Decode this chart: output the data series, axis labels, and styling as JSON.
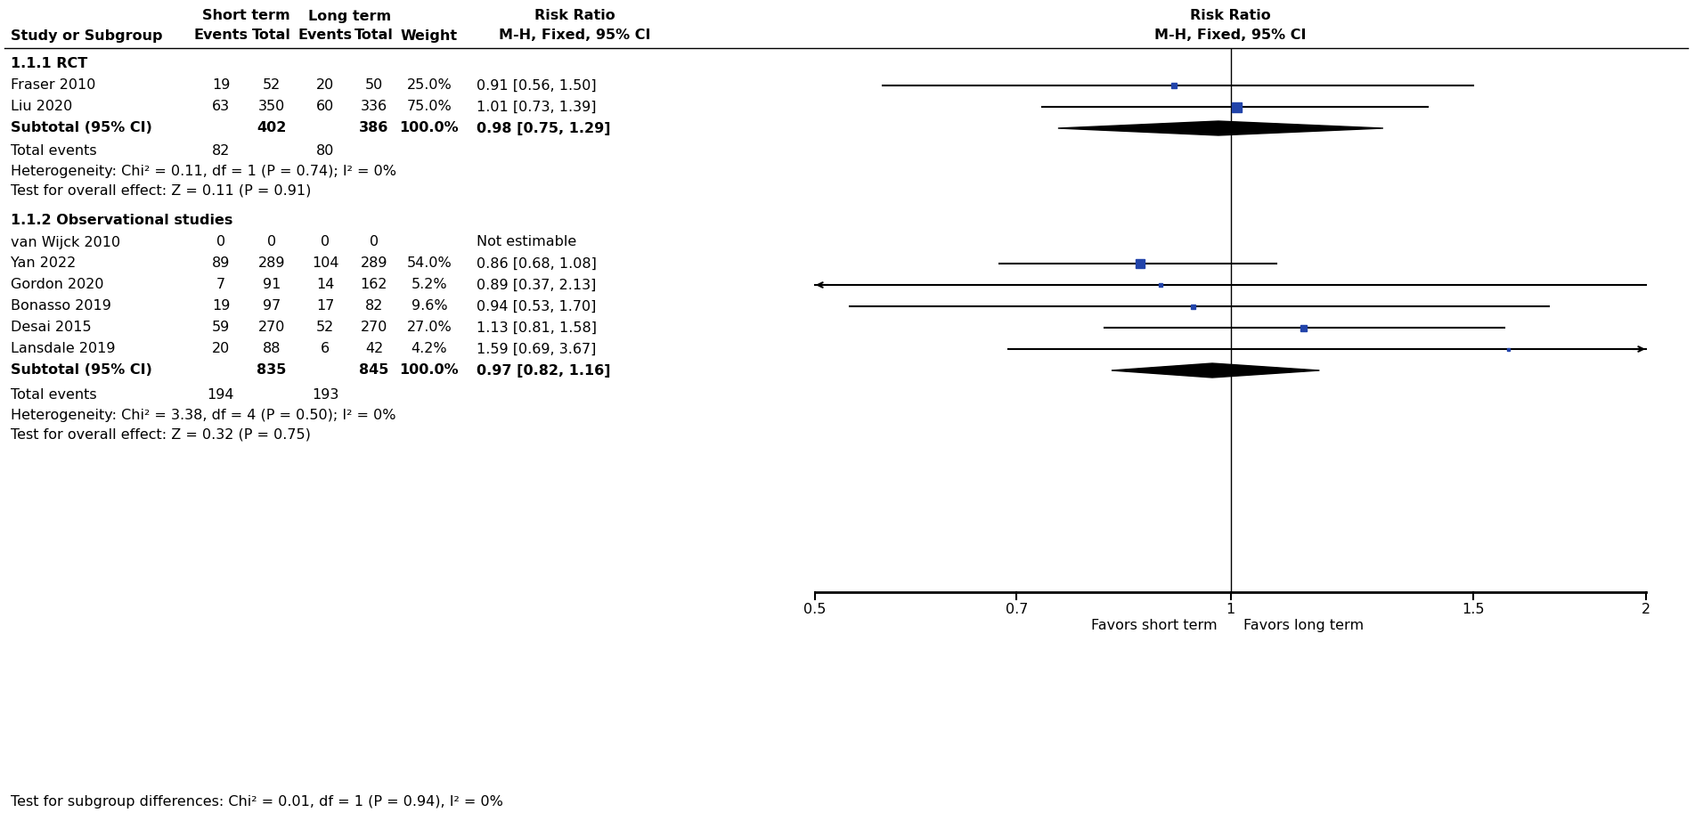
{
  "section1_header": "1.1.1 RCT",
  "section2_header": "1.1.2 Observational studies",
  "studies_rct": [
    {
      "name": "Fraser 2010",
      "st_events": 19,
      "st_total": 52,
      "lt_events": 20,
      "lt_total": 50,
      "weight": "25.0%",
      "rr": "0.91 [0.56, 1.50]",
      "point": 0.91,
      "ci_lo": 0.56,
      "ci_hi": 1.5,
      "square_size": 6
    },
    {
      "name": "Liu 2020",
      "st_events": 63,
      "st_total": 350,
      "lt_events": 60,
      "lt_total": 336,
      "weight": "75.0%",
      "rr": "1.01 [0.73, 1.39]",
      "point": 1.01,
      "ci_lo": 0.73,
      "ci_hi": 1.39,
      "square_size": 11
    }
  ],
  "subtotal_rct": {
    "name": "Subtotal (95% CI)",
    "st_total": 402,
    "lt_total": 386,
    "weight": "100.0%",
    "rr": "0.98 [0.75, 1.29]",
    "point": 0.98,
    "ci_lo": 0.75,
    "ci_hi": 1.29
  },
  "rct_total_events": {
    "st": 82,
    "lt": 80
  },
  "rct_heterogeneity": "Heterogeneity: Chi² = 0.11, df = 1 (P = 0.74); I² = 0%",
  "rct_overall": "Test for overall effect: Z = 0.11 (P = 0.91)",
  "studies_obs": [
    {
      "name": "van Wijck 2010",
      "st_events": "0",
      "st_total": "0",
      "lt_events": "0",
      "lt_total": "0",
      "weight": "",
      "rr": "Not estimable",
      "point": null,
      "ci_lo": null,
      "ci_hi": null,
      "square_size": 0,
      "not_estimable": true
    },
    {
      "name": "Yan 2022",
      "st_events": 89,
      "st_total": 289,
      "lt_events": 104,
      "lt_total": 289,
      "weight": "54.0%",
      "rr": "0.86 [0.68, 1.08]",
      "point": 0.86,
      "ci_lo": 0.68,
      "ci_hi": 1.08,
      "square_size": 10,
      "not_estimable": false
    },
    {
      "name": "Gordon 2020",
      "st_events": 7,
      "st_total": 91,
      "lt_events": 14,
      "lt_total": 162,
      "weight": "5.2%",
      "rr": "0.89 [0.37, 2.13]",
      "point": 0.89,
      "ci_lo": 0.37,
      "ci_hi": 2.13,
      "square_size": 4,
      "not_estimable": false,
      "arrow_left": true
    },
    {
      "name": "Bonasso 2019",
      "st_events": 19,
      "st_total": 97,
      "lt_events": 17,
      "lt_total": 82,
      "weight": "9.6%",
      "rr": "0.94 [0.53, 1.70]",
      "point": 0.94,
      "ci_lo": 0.53,
      "ci_hi": 1.7,
      "square_size": 5,
      "not_estimable": false
    },
    {
      "name": "Desai 2015",
      "st_events": 59,
      "st_total": 270,
      "lt_events": 52,
      "lt_total": 270,
      "weight": "27.0%",
      "rr": "1.13 [0.81, 1.58]",
      "point": 1.13,
      "ci_lo": 0.81,
      "ci_hi": 1.58,
      "square_size": 7,
      "not_estimable": false
    },
    {
      "name": "Lansdale 2019",
      "st_events": 20,
      "st_total": 88,
      "lt_events": 6,
      "lt_total": 42,
      "weight": "4.2%",
      "rr": "1.59 [0.69, 3.67]",
      "point": 1.59,
      "ci_lo": 0.69,
      "ci_hi": 3.67,
      "square_size": 3,
      "not_estimable": false,
      "arrow_right": true
    }
  ],
  "subtotal_obs": {
    "name": "Subtotal (95% CI)",
    "st_total": 835,
    "lt_total": 845,
    "weight": "100.0%",
    "rr": "0.97 [0.82, 1.16]",
    "point": 0.97,
    "ci_lo": 0.82,
    "ci_hi": 1.16
  },
  "obs_total_events": {
    "st": 194,
    "lt": 193
  },
  "obs_heterogeneity": "Heterogeneity: Chi² = 3.38, df = 4 (P = 0.50); I² = 0%",
  "obs_overall": "Test for overall effect: Z = 0.32 (P = 0.75)",
  "subgroup_diff": "Test for subgroup differences: Chi² = 0.01, df = 1 (P = 0.94), I² = 0%",
  "xmin": 0.5,
  "xmax": 2.0,
  "xticks": [
    0.5,
    0.7,
    1.0,
    1.5,
    2.0
  ],
  "xtick_labels": [
    "0.5",
    "0.7",
    "1",
    "1.5",
    "2"
  ],
  "xlabel_left": "Favors short term",
  "xlabel_right": "Favors long term",
  "plot_color": "#2244aa",
  "diamond_color": "black"
}
